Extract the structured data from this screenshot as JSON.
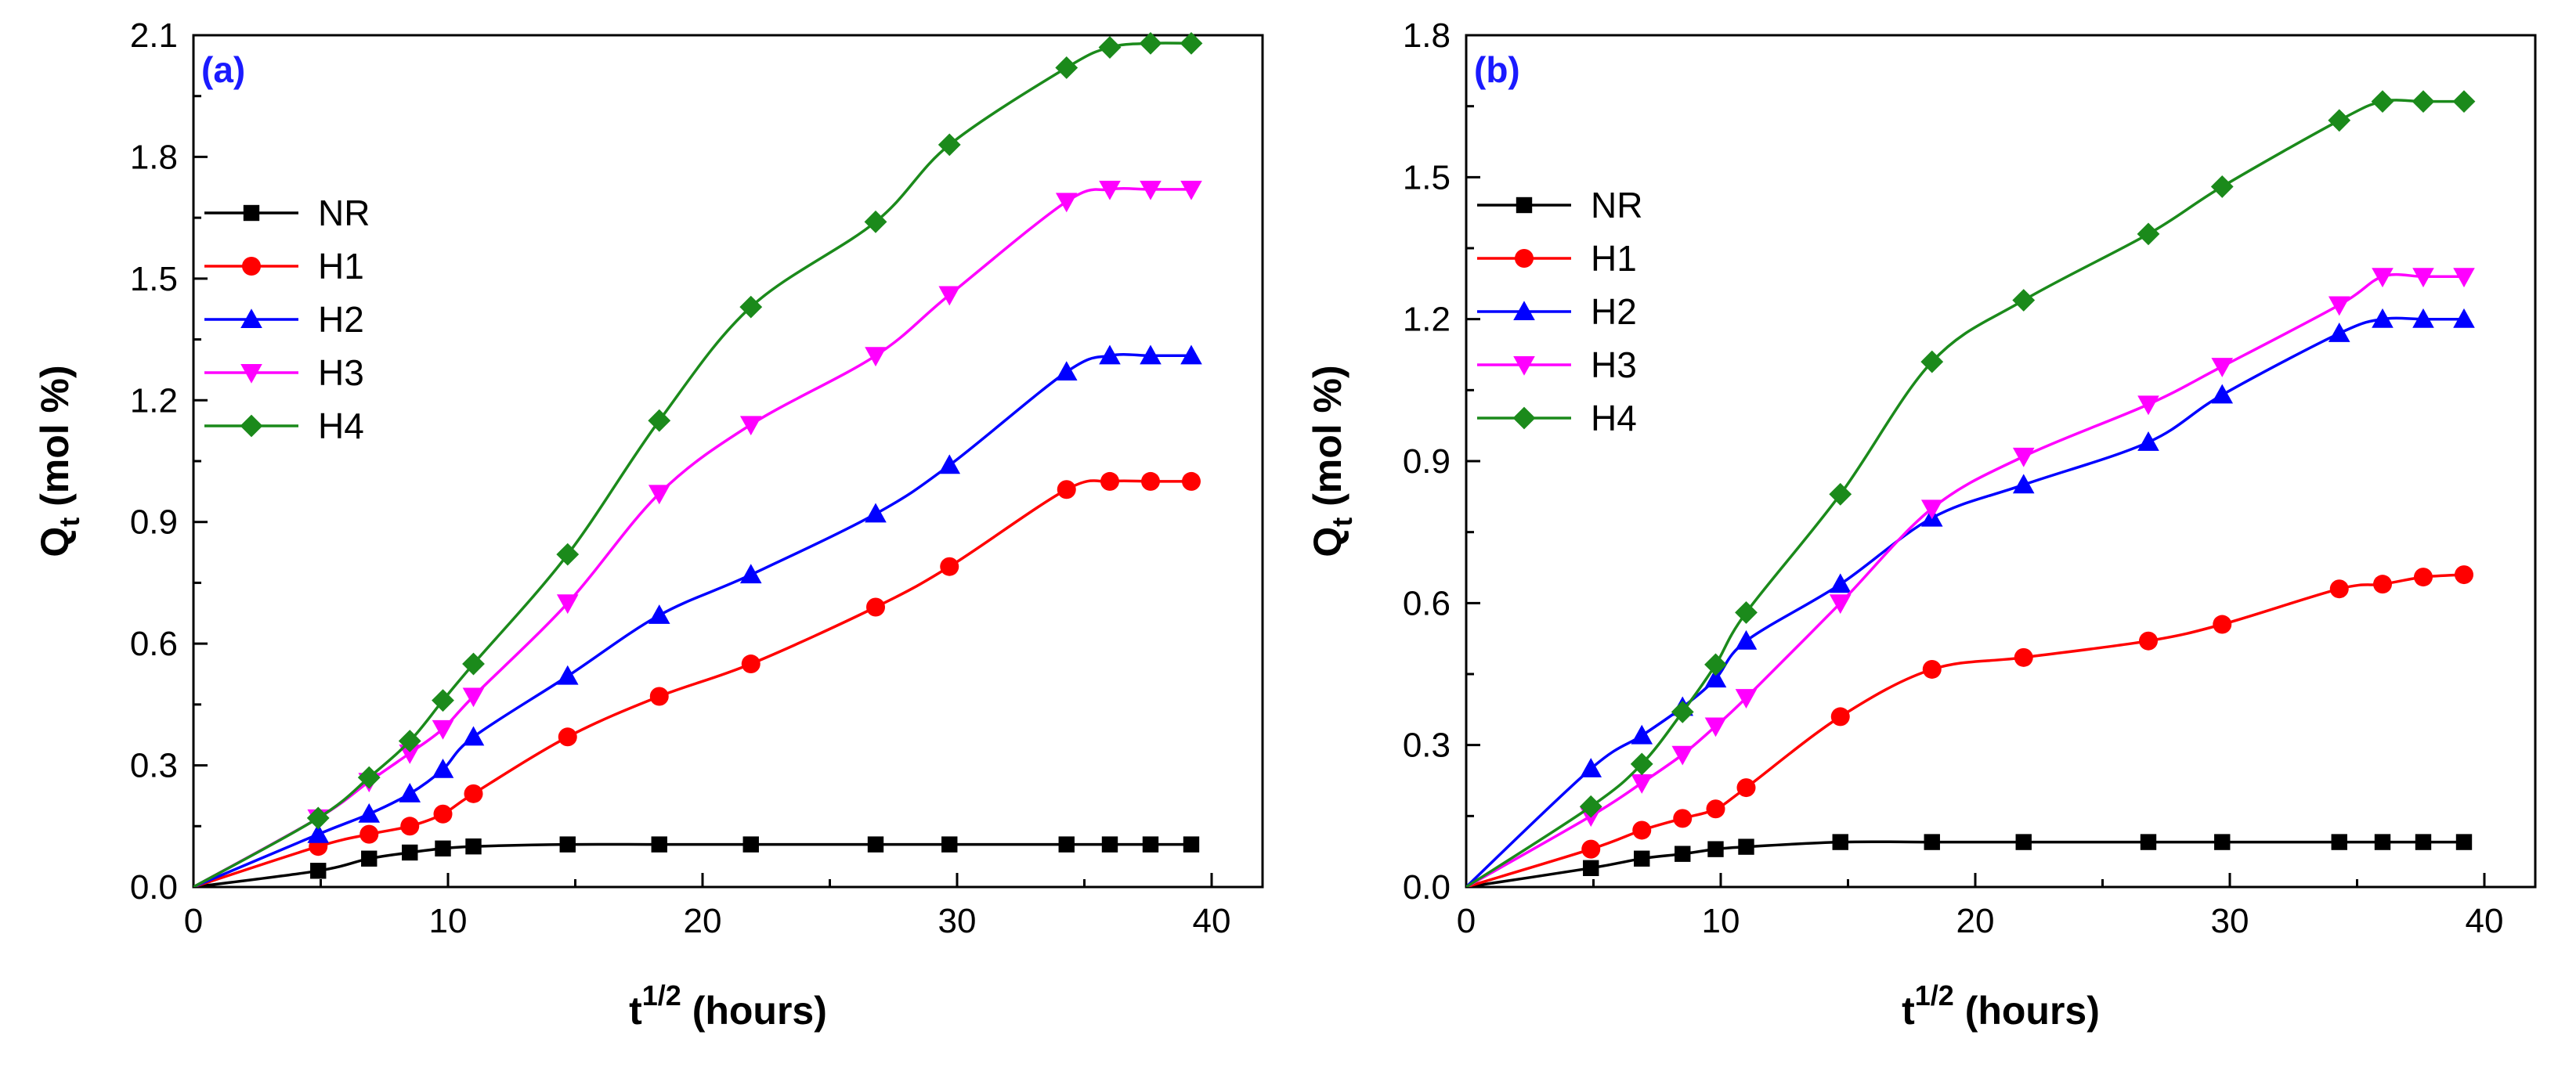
{
  "chart_data": [
    {
      "type": "line",
      "panel_label": "(a)",
      "xlabel": "t",
      "xlabel_sup": "1/2",
      "xlabel_suffix": "(hours)",
      "ylabel": "Q",
      "ylabel_sub": "t",
      "ylabel_suffix": "(mol %)",
      "xlim": [
        0,
        42
      ],
      "ylim": [
        0,
        2.1
      ],
      "xticks": [
        0,
        10,
        20,
        30,
        40
      ],
      "yticks": [
        0.0,
        0.3,
        0.6,
        0.9,
        1.2,
        1.5,
        1.8,
        2.1
      ],
      "xtick_labels": [
        "0",
        "10",
        "20",
        "30",
        "40"
      ],
      "ytick_labels": [
        "0.0",
        "0.3",
        "0.6",
        "0.9",
        "1.2",
        "1.5",
        "1.8",
        "2.1"
      ],
      "legend_position": "upper-left",
      "x": [
        0,
        4.9,
        6.9,
        8.5,
        9.8,
        11,
        14.7,
        18.3,
        21.9,
        26.8,
        29.7,
        34.3,
        36,
        37.6,
        39.2
      ],
      "series": [
        {
          "name": "NR",
          "marker": "square",
          "color": "#000000",
          "values": [
            0,
            0.04,
            0.07,
            0.085,
            0.095,
            0.1,
            0.105,
            0.105,
            0.105,
            0.105,
            0.105,
            0.105,
            0.105,
            0.105,
            0.105
          ]
        },
        {
          "name": "H1",
          "marker": "circle",
          "color": "#ff0000",
          "values": [
            0,
            0.1,
            0.13,
            0.15,
            0.18,
            0.23,
            0.37,
            0.47,
            0.55,
            0.69,
            0.79,
            0.98,
            1.0,
            1.0,
            1.0
          ]
        },
        {
          "name": "H2",
          "marker": "triangle-up",
          "color": "#0000ff",
          "values": [
            0,
            0.13,
            0.18,
            0.23,
            0.29,
            0.37,
            0.52,
            0.67,
            0.77,
            0.92,
            1.04,
            1.27,
            1.31,
            1.31,
            1.31
          ]
        },
        {
          "name": "H3",
          "marker": "triangle-down",
          "color": "#ff00ff",
          "values": [
            0,
            0.17,
            0.26,
            0.33,
            0.39,
            0.47,
            0.7,
            0.97,
            1.14,
            1.31,
            1.46,
            1.69,
            1.72,
            1.72,
            1.72
          ]
        },
        {
          "name": "H4",
          "marker": "diamond",
          "color": "#1b8a1b",
          "values": [
            0,
            0.17,
            0.27,
            0.36,
            0.46,
            0.55,
            0.82,
            1.15,
            1.43,
            1.64,
            1.83,
            2.02,
            2.07,
            2.08,
            2.08
          ]
        }
      ]
    },
    {
      "type": "line",
      "panel_label": "(b)",
      "xlabel": "t",
      "xlabel_sup": "1/2",
      "xlabel_suffix": "(hours)",
      "ylabel": "Q",
      "ylabel_sub": "t",
      "ylabel_suffix": "(mol %)",
      "xlim": [
        0,
        42
      ],
      "ylim": [
        0,
        1.8
      ],
      "xticks": [
        0,
        10,
        20,
        30,
        40
      ],
      "yticks": [
        0.0,
        0.3,
        0.6,
        0.9,
        1.2,
        1.5,
        1.8
      ],
      "xtick_labels": [
        "0",
        "10",
        "20",
        "30",
        "40"
      ],
      "ytick_labels": [
        "0.0",
        "0.3",
        "0.6",
        "0.9",
        "1.2",
        "1.5",
        "1.8"
      ],
      "legend_position": "upper-left",
      "x": [
        0,
        4.9,
        6.9,
        8.5,
        9.8,
        11,
        14.7,
        18.3,
        21.9,
        26.8,
        29.7,
        34.3,
        36,
        37.6,
        39.2
      ],
      "series": [
        {
          "name": "NR",
          "marker": "square",
          "color": "#000000",
          "values": [
            0,
            0.04,
            0.06,
            0.07,
            0.08,
            0.085,
            0.095,
            0.095,
            0.095,
            0.095,
            0.095,
            0.095,
            0.095,
            0.095,
            0.095
          ]
        },
        {
          "name": "H1",
          "marker": "circle",
          "color": "#ff0000",
          "values": [
            0,
            0.08,
            0.12,
            0.145,
            0.165,
            0.21,
            0.36,
            0.46,
            0.485,
            0.52,
            0.555,
            0.63,
            0.64,
            0.655,
            0.66
          ]
        },
        {
          "name": "H2",
          "marker": "triangle-up",
          "color": "#0000ff",
          "values": [
            0,
            0.25,
            0.32,
            0.38,
            0.44,
            0.52,
            0.64,
            0.78,
            0.85,
            0.94,
            1.04,
            1.17,
            1.2,
            1.2,
            1.2
          ]
        },
        {
          "name": "H3",
          "marker": "triangle-down",
          "color": "#ff00ff",
          "values": [
            0,
            0.15,
            0.22,
            0.28,
            0.34,
            0.4,
            0.6,
            0.8,
            0.91,
            1.02,
            1.1,
            1.23,
            1.29,
            1.29,
            1.29
          ]
        },
        {
          "name": "H4",
          "marker": "diamond",
          "color": "#1b8a1b",
          "values": [
            0,
            0.17,
            0.26,
            0.37,
            0.47,
            0.58,
            0.83,
            1.11,
            1.24,
            1.38,
            1.48,
            1.62,
            1.66,
            1.66,
            1.66
          ]
        }
      ]
    }
  ]
}
